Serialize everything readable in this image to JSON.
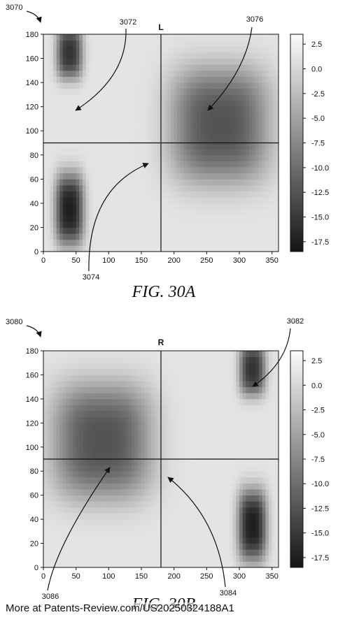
{
  "chart_data": [
    {
      "type": "heatmap",
      "figure_ref": "3070",
      "title": "L",
      "caption": "FIG. 30A",
      "xlim": [
        0,
        360
      ],
      "ylim": [
        0,
        180
      ],
      "x_ticks": [
        0,
        50,
        100,
        150,
        200,
        250,
        300,
        350
      ],
      "y_ticks": [
        0,
        20,
        40,
        60,
        80,
        100,
        120,
        140,
        160,
        180
      ],
      "colorbar_ticks": [
        2.5,
        0.0,
        -2.5,
        -5.0,
        -7.5,
        -10.0,
        -12.5,
        -15.0,
        -17.5
      ],
      "colorbar_range": [
        -18.5,
        3.5
      ],
      "colormap": "grayscale",
      "crosshair": {
        "x": 180,
        "y": 90
      },
      "regions": [
        {
          "x": 40,
          "y": 35,
          "value": -17.5
        },
        {
          "x": 40,
          "y": 165,
          "value": -15.5
        },
        {
          "x": 270,
          "y": 105,
          "value": -12.5
        }
      ],
      "annotations": [
        {
          "label": "3072",
          "x": 50,
          "y": 118
        },
        {
          "label": "3074",
          "x": 165,
          "y": 77
        },
        {
          "label": "3076",
          "x": 255,
          "y": 112
        }
      ]
    },
    {
      "type": "heatmap",
      "figure_ref": "3080",
      "title": "R",
      "caption": "FIG. 30B",
      "xlim": [
        0,
        360
      ],
      "ylim": [
        0,
        180
      ],
      "x_ticks": [
        0,
        50,
        100,
        150,
        200,
        250,
        300,
        350
      ],
      "y_ticks": [
        0,
        20,
        40,
        60,
        80,
        100,
        120,
        140,
        160,
        180
      ],
      "colorbar_ticks": [
        2.5,
        0.0,
        -2.5,
        -5.0,
        -7.5,
        -10.0,
        -12.5,
        -15.0,
        -17.5
      ],
      "colorbar_range": [
        -18.5,
        3.5
      ],
      "colormap": "grayscale",
      "crosshair": {
        "x": 180,
        "y": 90
      },
      "regions": [
        {
          "x": 320,
          "y": 35,
          "value": -17.5
        },
        {
          "x": 320,
          "y": 165,
          "value": -15.5
        },
        {
          "x": 90,
          "y": 105,
          "value": -12.5
        }
      ],
      "annotations": [
        {
          "label": "3082",
          "x": 320,
          "y": 125
        },
        {
          "label": "3084",
          "x": 195,
          "y": 75
        },
        {
          "label": "3086",
          "x": 102,
          "y": 82
        }
      ]
    }
  ],
  "footer": "More at Patents-Review.com/US20250324188A1"
}
